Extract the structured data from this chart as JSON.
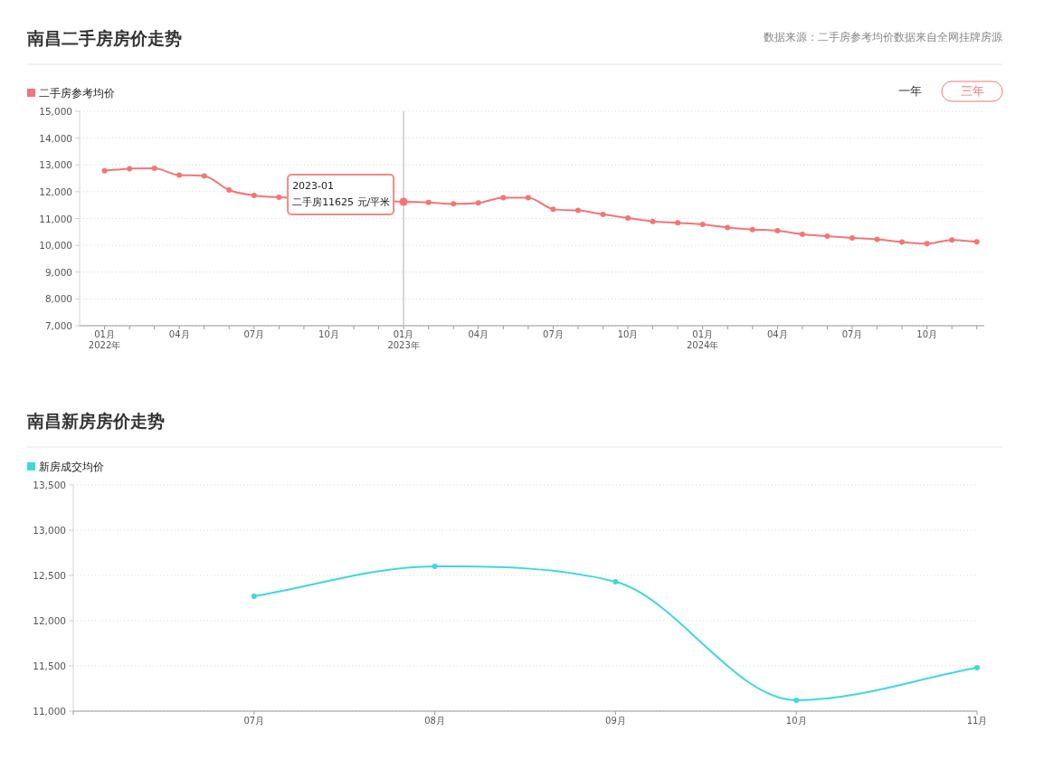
{
  "chart_data": [
    {
      "type": "line",
      "title": "南昌二手房房价走势",
      "subtitle": "数据来源：二手房参考均价数据来自全网挂牌房源",
      "x": [
        "2022-01",
        "2022-02",
        "2022-03",
        "2022-04",
        "2022-05",
        "2022-06",
        "2022-07",
        "2022-08",
        "2023-01",
        "2023-02",
        "2023-03",
        "2023-04",
        "2023-05",
        "2023-06",
        "2023-07",
        "2023-08",
        "2023-09",
        "2023-10",
        "2023-11",
        "2023-12",
        "2024-01",
        "2024-02",
        "2024-03",
        "2024-04",
        "2024-05",
        "2024-06",
        "2024-07",
        "2024-08",
        "2024-09",
        "2024-10",
        "2024-11",
        "2024-12"
      ],
      "series": [
        {
          "name": "二手房参考均价",
          "color": "#f47575",
          "values": [
            12780,
            12860,
            12870,
            12620,
            12590,
            12060,
            11860,
            11790,
            11625,
            11600,
            11545,
            11580,
            11780,
            11780,
            11350,
            11300,
            11150,
            11020,
            10890,
            10840,
            10780,
            10660,
            10590,
            10545,
            10410,
            10340,
            10275,
            10220,
            10120,
            10060,
            10200,
            10130
          ]
        }
      ],
      "xlim": [
        "2021-12-01",
        "2024-12-10"
      ],
      "xticks": [
        {
          "value": "2022-01",
          "label": "01月\n2022年"
        },
        {
          "value": "2022-02",
          "label": null
        },
        {
          "value": "2022-03",
          "label": null
        },
        {
          "value": "2022-04",
          "label": "04月"
        },
        {
          "value": "2022-05",
          "label": null
        },
        {
          "value": "2022-06",
          "label": null
        },
        {
          "value": "2022-07",
          "label": "07月"
        },
        {
          "value": "2022-08",
          "label": null
        },
        {
          "value": "2022-09",
          "label": null
        },
        {
          "value": "2022-10",
          "label": "10月"
        },
        {
          "value": "2022-11",
          "label": null
        },
        {
          "value": "2022-12",
          "label": null
        },
        {
          "value": "2023-01",
          "label": "01月\n2023年"
        },
        {
          "value": "2023-02",
          "label": null
        },
        {
          "value": "2023-03",
          "label": null
        },
        {
          "value": "2023-04",
          "label": "04月"
        },
        {
          "value": "2023-05",
          "label": null
        },
        {
          "value": "2023-06",
          "label": null
        },
        {
          "value": "2023-07",
          "label": "07月"
        },
        {
          "value": "2023-08",
          "label": null
        },
        {
          "value": "2023-09",
          "label": null
        },
        {
          "value": "2023-10",
          "label": "10月"
        },
        {
          "value": "2023-11",
          "label": null
        },
        {
          "value": "2023-12",
          "label": null
        },
        {
          "value": "2024-01",
          "label": "01月\n2024年"
        },
        {
          "value": "2024-02",
          "label": null
        },
        {
          "value": "2024-03",
          "label": null
        },
        {
          "value": "2024-04",
          "label": "04月"
        },
        {
          "value": "2024-05",
          "label": null
        },
        {
          "value": "2024-06",
          "label": null
        },
        {
          "value": "2024-07",
          "label": "07月"
        },
        {
          "value": "2024-08",
          "label": null
        },
        {
          "value": "2024-09",
          "label": null
        },
        {
          "value": "2024-10",
          "label": "10月"
        },
        {
          "value": "2024-11",
          "label": null
        },
        {
          "value": "2024-12",
          "label": null
        }
      ],
      "ylim": [
        7000,
        15000
      ],
      "yticks": [
        {
          "value": 7000,
          "label": "7,000"
        },
        {
          "value": 8000,
          "label": "8,000"
        },
        {
          "value": 9000,
          "label": "9,000"
        },
        {
          "value": 10000,
          "label": "10,000"
        },
        {
          "value": 11000,
          "label": "11,000"
        },
        {
          "value": 12000,
          "label": "12,000"
        },
        {
          "value": 13000,
          "label": "13,000"
        },
        {
          "value": 14000,
          "label": "14,000"
        },
        {
          "value": 15000,
          "label": "15,000"
        }
      ],
      "ref_lines": [
        {
          "axis": "x",
          "value": "2023-01",
          "color": "#cccccc"
        }
      ],
      "annotations": [
        {
          "text": "2023-01\n二手房11625 元/平米",
          "x": "2023-01",
          "y": 11625
        },
        "一年",
        "三年"
      ],
      "grid": "y",
      "legend": "top left",
      "marker": "circle",
      "line_style": "solid"
    },
    {
      "type": "line",
      "title": "南昌新房房价走势",
      "categories": [
        null,
        "07月",
        "08月",
        "09月",
        "10月",
        "11月"
      ],
      "series": [
        {
          "name": "新房成交均价",
          "color": "#3ed8dc",
          "values": [
            null,
            12270,
            12600,
            12430,
            11120,
            11480
          ]
        }
      ],
      "ylim": [
        11000,
        13500
      ],
      "yticks": [
        {
          "value": 11000,
          "label": "11,000"
        },
        {
          "value": 11500,
          "label": "11,500"
        },
        {
          "value": 12000,
          "label": "12,000"
        },
        {
          "value": 12500,
          "label": "12,500"
        },
        {
          "value": 13000,
          "label": "13,000"
        },
        {
          "value": 13500,
          "label": "13,500"
        }
      ],
      "grid": "y",
      "legend": "top left",
      "marker": "circle",
      "line_style": "solid"
    }
  ]
}
